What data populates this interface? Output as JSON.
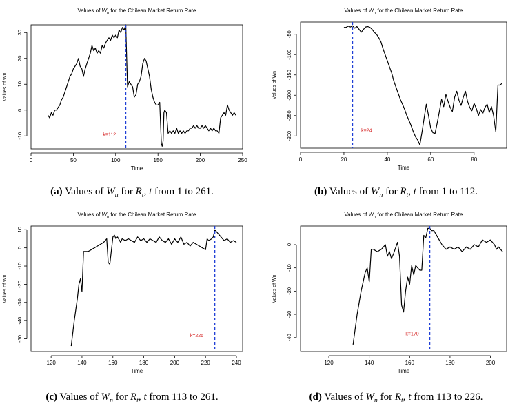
{
  "chart_data": [
    {
      "type": "line",
      "title_prefix": "Values of ",
      "title_var": "W",
      "title_sub": "n",
      "title_suffix": " for the Chilean Market Return Rate",
      "xlabel": "Time",
      "ylabel": "Values of Wn",
      "xlim": [
        0,
        250
      ],
      "ylim": [
        -15,
        33
      ],
      "xticks": [
        0,
        50,
        100,
        150,
        200,
        250
      ],
      "yticks": [
        -10,
        0,
        10,
        20,
        30
      ],
      "vline_x": 112,
      "vline_label": "k=112",
      "vline_label_pos": [
        85,
        -10
      ],
      "x": [
        20,
        22,
        24,
        26,
        28,
        30,
        32,
        34,
        36,
        38,
        40,
        42,
        44,
        46,
        48,
        50,
        52,
        54,
        56,
        58,
        60,
        62,
        64,
        66,
        68,
        70,
        72,
        74,
        76,
        78,
        80,
        82,
        84,
        86,
        88,
        90,
        92,
        94,
        96,
        98,
        100,
        102,
        104,
        106,
        108,
        110,
        112,
        113,
        114,
        116,
        118,
        120,
        122,
        124,
        126,
        128,
        130,
        132,
        134,
        136,
        138,
        140,
        142,
        144,
        146,
        148,
        150,
        152,
        154,
        155,
        156,
        157,
        158,
        160,
        162,
        164,
        166,
        168,
        170,
        172,
        174,
        176,
        178,
        180,
        182,
        184,
        186,
        188,
        190,
        192,
        194,
        196,
        198,
        200,
        202,
        204,
        206,
        208,
        210,
        212,
        214,
        216,
        218,
        220,
        222,
        224,
        226,
        228,
        230,
        232,
        234,
        236,
        238,
        240,
        242
      ],
      "y": [
        -2,
        -3,
        -1,
        -2,
        0,
        0,
        1,
        2,
        4,
        5,
        7,
        9,
        11,
        13,
        14,
        16,
        17,
        18,
        20,
        17,
        16,
        13,
        16,
        18,
        20,
        22,
        25,
        23,
        24,
        22,
        23,
        22,
        25,
        24,
        26,
        27,
        28,
        27,
        29,
        28,
        29,
        28,
        31,
        30,
        32,
        31,
        33,
        20,
        9,
        11,
        10,
        9,
        5,
        6,
        10,
        11,
        13,
        18,
        20,
        19,
        16,
        13,
        8,
        5,
        3,
        2,
        2,
        3,
        -13,
        -14,
        -12,
        -1,
        0,
        -1,
        -9,
        -8,
        -9,
        -8,
        -9,
        -7,
        -9,
        -8,
        -9,
        -8,
        -9,
        -8,
        -8,
        -7,
        -7,
        -6,
        -7,
        -6,
        -7,
        -7,
        -6,
        -7,
        -6,
        -7,
        -8,
        -7,
        -8,
        -7,
        -8,
        -8,
        -9,
        -3,
        -2,
        -1,
        -2,
        2,
        0,
        -1,
        -2,
        -1,
        -2
      ]
    },
    {
      "type": "line",
      "title_prefix": "Values of ",
      "title_var": "W",
      "title_sub": "n",
      "title_suffix": " for the Chilean Market Return Rate",
      "xlabel": "Time",
      "ylabel": "Values of Wn",
      "xlim": [
        0,
        95
      ],
      "ylim": [
        -330,
        -20
      ],
      "xticks": [
        0,
        20,
        40,
        60,
        80
      ],
      "yticks": [
        -300,
        -250,
        -200,
        -150,
        -100,
        -50
      ],
      "vline_x": 24,
      "vline_label": "k=24",
      "vline_label_pos": [
        28,
        -290
      ],
      "x": [
        20,
        21,
        22,
        23,
        24,
        25,
        26,
        27,
        28,
        29,
        30,
        31,
        32,
        33,
        34,
        35,
        36,
        37,
        38,
        39,
        40,
        41,
        42,
        43,
        44,
        45,
        46,
        47,
        48,
        49,
        50,
        51,
        52,
        53,
        54,
        55,
        56,
        57,
        58,
        59,
        60,
        61,
        62,
        63,
        64,
        65,
        66,
        67,
        68,
        69,
        70,
        71,
        72,
        73,
        74,
        75,
        76,
        77,
        78,
        79,
        80,
        81,
        82,
        83,
        84,
        85,
        86,
        87,
        88,
        89,
        90,
        91,
        92,
        93
      ],
      "y": [
        -33,
        -33,
        -30,
        -32,
        -29,
        -35,
        -31,
        -38,
        -45,
        -38,
        -32,
        -31,
        -33,
        -38,
        -45,
        -50,
        -58,
        -68,
        -85,
        -100,
        -115,
        -130,
        -145,
        -165,
        -180,
        -195,
        -210,
        -222,
        -235,
        -250,
        -262,
        -275,
        -290,
        -302,
        -310,
        -322,
        -290,
        -255,
        -222,
        -250,
        -280,
        -292,
        -294,
        -268,
        -240,
        -210,
        -228,
        -198,
        -215,
        -230,
        -240,
        -205,
        -190,
        -212,
        -225,
        -205,
        -190,
        -215,
        -230,
        -238,
        -220,
        -232,
        -250,
        -235,
        -245,
        -230,
        -222,
        -242,
        -228,
        -250,
        -290,
        -175,
        -175,
        -170
      ]
    },
    {
      "type": "line",
      "title_prefix": "Values of ",
      "title_var": "W",
      "title_sub": "n",
      "title_suffix": " for the Chilean Market Return Rate",
      "xlabel": "Time",
      "ylabel": "Values of Wn",
      "xlim": [
        107,
        244
      ],
      "ylim": [
        -57,
        12
      ],
      "xticks": [
        120,
        140,
        160,
        180,
        200,
        220,
        240
      ],
      "yticks": [
        -50,
        -40,
        -30,
        -20,
        -10,
        0,
        10
      ],
      "vline_x": 226,
      "vline_label": "k=226",
      "vline_label_pos": [
        210,
        -49
      ],
      "x": [
        133,
        135,
        137,
        138,
        139,
        140,
        141,
        142,
        144,
        146,
        148,
        150,
        152,
        154,
        156,
        157,
        158,
        160,
        161,
        162,
        163,
        165,
        166,
        168,
        170,
        172,
        174,
        176,
        178,
        180,
        182,
        184,
        186,
        188,
        190,
        192,
        194,
        196,
        198,
        200,
        202,
        204,
        206,
        208,
        210,
        212,
        214,
        216,
        218,
        220,
        221,
        222,
        224,
        225,
        226,
        228,
        230,
        232,
        234,
        236,
        238,
        240
      ],
      "y": [
        -54,
        -40,
        -28,
        -20,
        -17,
        -24,
        -2,
        -2,
        -2,
        -1,
        0,
        1,
        2,
        3,
        5,
        -8,
        -9,
        6,
        7,
        5,
        6,
        3,
        5,
        4,
        5,
        4,
        3,
        6,
        4,
        5,
        3,
        5,
        4,
        3,
        6,
        4,
        3,
        5,
        2,
        5,
        3,
        6,
        2,
        3,
        1,
        3,
        2,
        1,
        0,
        -1,
        5,
        4,
        5,
        6,
        10,
        8,
        6,
        4,
        5,
        3,
        4,
        3
      ]
    },
    {
      "type": "line",
      "title_prefix": "Values of ",
      "title_var": "W",
      "title_sub": "n",
      "title_suffix": " for the Chilean Market Return Rate",
      "xlabel": "Time",
      "ylabel": "Values of Wn",
      "xlim": [
        106,
        208
      ],
      "ylim": [
        -46,
        8
      ],
      "xticks": [
        120,
        140,
        160,
        180,
        200
      ],
      "yticks": [
        -40,
        -30,
        -20,
        -10,
        0
      ],
      "vline_x": 170,
      "vline_label": "k=170",
      "vline_label_pos": [
        158,
        -39
      ],
      "x": [
        132,
        134,
        136,
        138,
        139,
        140,
        141,
        142,
        144,
        146,
        148,
        149,
        150,
        151,
        152,
        154,
        155,
        156,
        157,
        158,
        159,
        160,
        161,
        162,
        163,
        164,
        165,
        166,
        167,
        168,
        169,
        170,
        171,
        172,
        174,
        176,
        178,
        180,
        182,
        184,
        186,
        188,
        190,
        192,
        194,
        196,
        198,
        200,
        202,
        203,
        204,
        206
      ],
      "y": [
        -43,
        -30,
        -20,
        -12,
        -10,
        -16,
        -2,
        -2,
        -3,
        -2,
        0,
        -5,
        -3,
        -6,
        -4,
        1,
        -5,
        -26,
        -29,
        -20,
        -14,
        -17,
        -9,
        -13,
        -9,
        -10,
        -11,
        -11,
        4,
        3,
        7,
        7,
        6,
        6,
        3,
        0,
        -2,
        -1,
        -2,
        -1,
        -3,
        -1,
        -2,
        0,
        -1,
        2,
        1,
        2,
        0,
        -2,
        -1,
        -3
      ]
    }
  ],
  "captions": [
    {
      "label": "(a)",
      "text1": " Values of ",
      "var": "W",
      "sub": "n",
      "text2": " for ",
      "var2": "R",
      "sub2": "t",
      "text3": ", ",
      "var3": "t",
      "text4": " from 1 to 261."
    },
    {
      "label": "(b)",
      "text1": " Values of ",
      "var": "W",
      "sub": "n",
      "text2": " for ",
      "var2": "R",
      "sub2": "t",
      "text3": ", ",
      "var3": "t",
      "text4": " from 1 to 112."
    },
    {
      "label": "(c)",
      "text1": " Values of ",
      "var": "W",
      "sub": "n",
      "text2": " for ",
      "var2": "R",
      "sub2": "t",
      "text3": ", ",
      "var3": "t",
      "text4": " from 113 to 261."
    },
    {
      "label": "(d)",
      "text1": " Values of ",
      "var": "W",
      "sub": "n",
      "text2": " for ",
      "var2": "R",
      "sub2": "t",
      "text3": ", ",
      "var3": "t",
      "text4": " from 113 to 226."
    }
  ],
  "colors": {
    "line": "#000000",
    "vline": "#1f3fd6",
    "label": "#d42020",
    "axis": "#000000"
  }
}
